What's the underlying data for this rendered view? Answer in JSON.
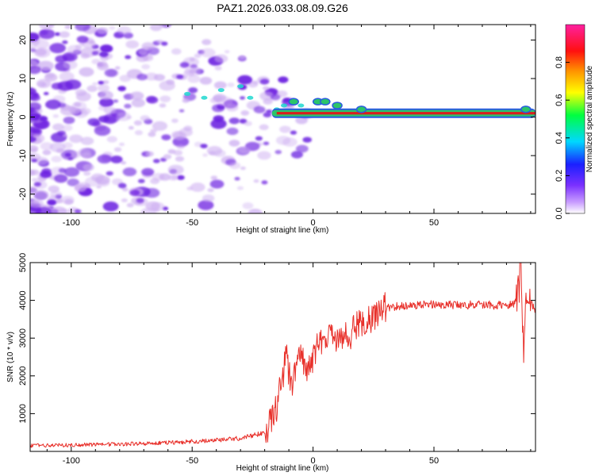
{
  "title": "PAZ1.2026.033.08.09.G26",
  "colors": {
    "snr_line": "#e8302a",
    "trace_center": "#d81e1e",
    "trace_mid": "#2cc46a",
    "trace_outer": "#2a5be0",
    "blob_core": "#6a1ee0",
    "blob_halo": "#c9a8f0"
  },
  "chart_data": [
    {
      "type": "heatmap",
      "name": "spectrogram",
      "xlabel": "Height of straight line (km)",
      "ylabel": "Frequency (Hz)",
      "xlim": [
        -117,
        92
      ],
      "ylim": [
        -25,
        24
      ],
      "xticks": [
        -100,
        -50,
        0,
        50
      ],
      "xtick_labels": [
        "-100",
        "-50",
        "0",
        "50"
      ],
      "yticks": [
        -20,
        -10,
        0,
        10,
        20
      ],
      "ytick_labels": [
        "-20",
        "-10",
        "0",
        "10",
        "20"
      ],
      "description_values": {
        "dominant_trace_frequency_hz": 1.0,
        "trace_start_km": -17,
        "trace_end_km": 92
      },
      "colorbar": {
        "label": "Normalized spectral amplitude",
        "range": [
          0,
          1
        ],
        "ticks": [
          0.0,
          0.2,
          0.4,
          0.6,
          0.8
        ],
        "tick_labels": [
          "0.0",
          "0.2",
          "0.4",
          "0.6",
          "0.8"
        ],
        "stops": [
          "#ffffff",
          "#b070ff",
          "#3030ff",
          "#00e0ff",
          "#00ff40",
          "#ffff00",
          "#ff8000",
          "#ff0000",
          "#ff0090"
        ]
      }
    },
    {
      "type": "line",
      "name": "snr",
      "xlabel": "Height of straight line (km)",
      "ylabel": "SNR (10 * v/v)",
      "xlim": [
        -117,
        92
      ],
      "ylim": [
        0,
        5000
      ],
      "xticks": [
        -100,
        -50,
        0,
        50
      ],
      "xtick_labels": [
        "-100",
        "-50",
        "0",
        "50"
      ],
      "yticks": [
        1000,
        2000,
        3000,
        4000,
        5000
      ],
      "ytick_labels": [
        "1000",
        "2000",
        "3000",
        "4000",
        "5000"
      ],
      "series": [
        {
          "name": "SNR",
          "x": [
            -117,
            -110,
            -100,
            -90,
            -80,
            -70,
            -60,
            -50,
            -40,
            -30,
            -25,
            -20,
            -18,
            -15,
            -13,
            -11,
            -9,
            -7,
            -5,
            -3,
            0,
            3,
            5,
            8,
            10,
            13,
            15,
            18,
            20,
            23,
            25,
            28,
            30,
            35,
            40,
            45,
            50,
            55,
            60,
            65,
            70,
            75,
            80,
            83,
            85,
            86,
            87,
            88,
            89,
            90,
            92
          ],
          "values": [
            150,
            160,
            170,
            180,
            190,
            210,
            230,
            260,
            300,
            350,
            420,
            500,
            700,
            1200,
            1900,
            2500,
            1700,
            2300,
            2700,
            2000,
            2500,
            2900,
            2700,
            3100,
            2800,
            3200,
            3050,
            3350,
            3300,
            3500,
            3600,
            3750,
            3800,
            3850,
            3870,
            3880,
            3900,
            3880,
            3870,
            3880,
            3890,
            3870,
            3880,
            3900,
            4200,
            5000,
            2600,
            3900,
            3600,
            3950,
            3750
          ]
        }
      ]
    }
  ]
}
